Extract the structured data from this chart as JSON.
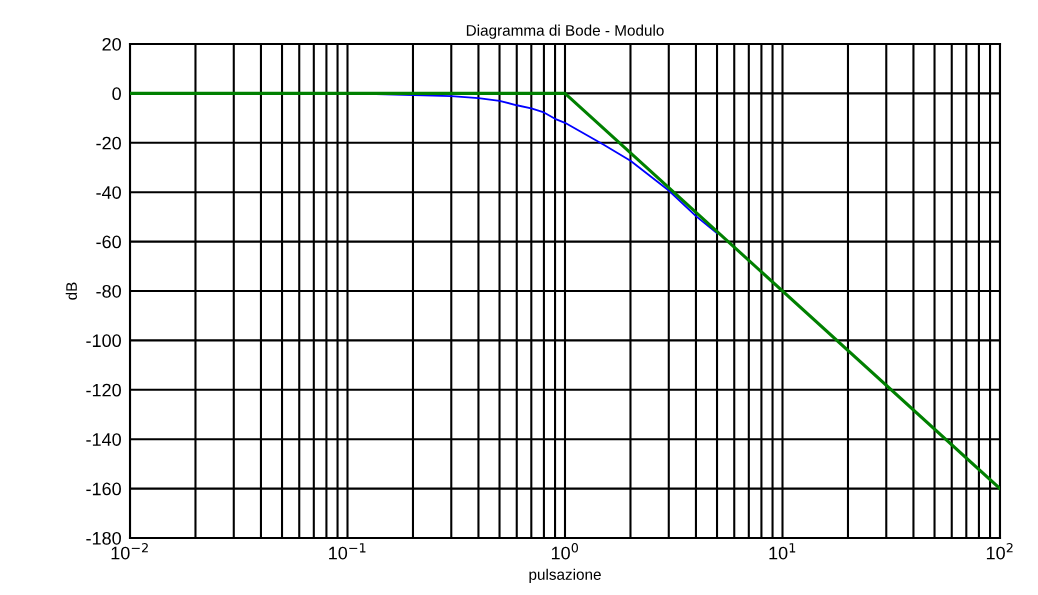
{
  "chart_data": {
    "type": "line",
    "title": "Diagramma di Bode - Modulo",
    "xlabel": "pulsazione",
    "ylabel": "dB",
    "log": "x",
    "grid": true,
    "marker": "none",
    "line_style": "solid",
    "xlim": [
      0.01,
      100
    ],
    "ylim": [
      -180,
      20
    ],
    "xticks": [
      {
        "value": 0.01,
        "label": "10$^{−2}$"
      },
      {
        "value": 0.02,
        "label": null
      },
      {
        "value": 0.03,
        "label": null
      },
      {
        "value": 0.04,
        "label": null
      },
      {
        "value": 0.05,
        "label": null
      },
      {
        "value": 0.06,
        "label": null
      },
      {
        "value": 0.07,
        "label": null
      },
      {
        "value": 0.08,
        "label": null
      },
      {
        "value": 0.09,
        "label": null
      },
      {
        "value": 0.1,
        "label": "10$^{−1}$"
      },
      {
        "value": 0.2,
        "label": null
      },
      {
        "value": 0.3,
        "label": null
      },
      {
        "value": 0.4,
        "label": null
      },
      {
        "value": 0.5,
        "label": null
      },
      {
        "value": 0.6,
        "label": null
      },
      {
        "value": 0.7,
        "label": null
      },
      {
        "value": 0.8,
        "label": null
      },
      {
        "value": 0.9,
        "label": null
      },
      {
        "value": 1,
        "label": "10$^{0}$"
      },
      {
        "value": 2,
        "label": null
      },
      {
        "value": 3,
        "label": null
      },
      {
        "value": 4,
        "label": null
      },
      {
        "value": 5,
        "label": null
      },
      {
        "value": 6,
        "label": null
      },
      {
        "value": 7,
        "label": null
      },
      {
        "value": 8,
        "label": null
      },
      {
        "value": 9,
        "label": null
      },
      {
        "value": 10,
        "label": "10$^{1}$"
      },
      {
        "value": 20,
        "label": null
      },
      {
        "value": 30,
        "label": null
      },
      {
        "value": 40,
        "label": null
      },
      {
        "value": 50,
        "label": null
      },
      {
        "value": 60,
        "label": null
      },
      {
        "value": 70,
        "label": null
      },
      {
        "value": 80,
        "label": null
      },
      {
        "value": 90,
        "label": null
      },
      {
        "value": 100,
        "label": "10$^{2}$"
      }
    ],
    "yticks": [
      20,
      0,
      -20,
      -40,
      -60,
      -80,
      -100,
      -120,
      -140,
      -160,
      -180
    ],
    "series": [
      {
        "color": "#0000ff",
        "x": [
          0.01,
          0.1,
          0.3,
          0.4,
          0.5,
          0.6,
          0.7,
          0.8,
          0.9,
          1,
          1.5,
          2,
          3,
          4,
          5
        ],
        "values": [
          0,
          0,
          -1.1,
          -1.9,
          -3,
          -4.8,
          -6.1,
          -7.7,
          -10.3,
          -11.9,
          -20.7,
          -27.3,
          -39.3,
          -49.7,
          -56.6
        ]
      },
      {
        "color": "#008000",
        "x": [
          0.01,
          1,
          100
        ],
        "values": [
          0,
          0,
          -160
        ]
      }
    ]
  }
}
